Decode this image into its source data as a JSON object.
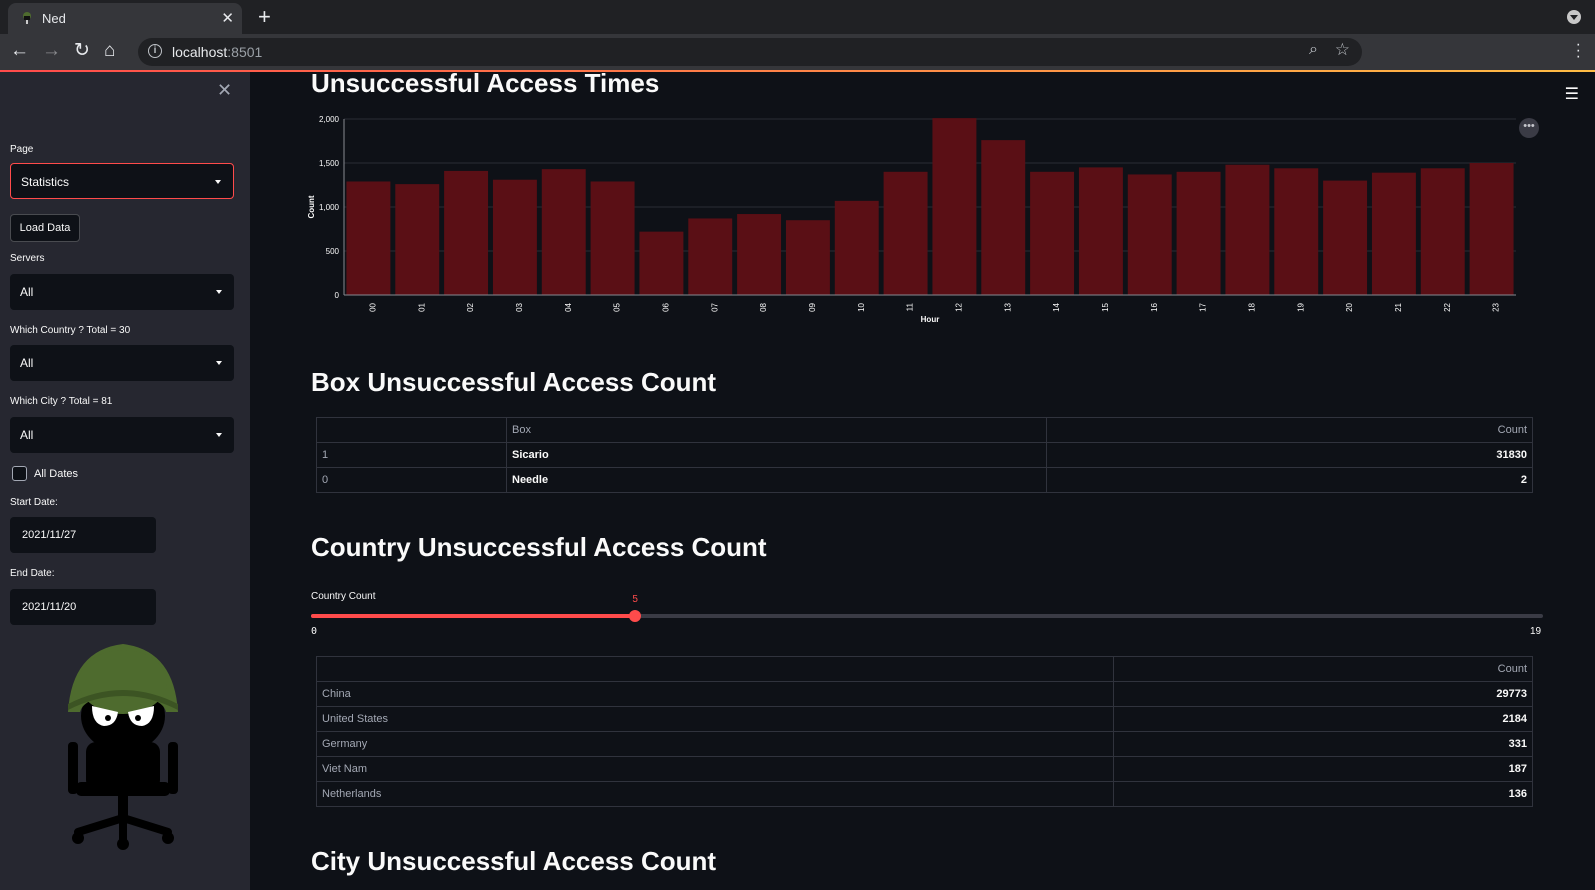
{
  "browser": {
    "tab_title": "Ned",
    "url_host": "localhost",
    "url_port": ":8501"
  },
  "sidebar": {
    "page_label": "Page",
    "page_value": "Statistics",
    "load_button": "Load Data",
    "servers_label": "Servers",
    "servers_value": "All",
    "country_label": "Which Country ? Total = 30",
    "country_value": "All",
    "city_label": "Which City ? Total = 81",
    "city_value": "All",
    "all_dates_label": "All Dates",
    "start_date_label": "Start Date:",
    "start_date_value": "2021/11/27",
    "end_date_label": "End Date:",
    "end_date_value": "2021/11/20"
  },
  "main": {
    "access_times_title": "Unsuccessful Access Times",
    "box_title": "Box Unsuccessful Access Count",
    "country_title": "Country Unsuccessful Access Count",
    "city_title": "City Unsuccessful Access Count",
    "slider": {
      "label": "Country Count",
      "value": 5,
      "min": 0,
      "max": 19,
      "value_text": "5",
      "min_text": "0",
      "max_text": "19"
    },
    "box_table": {
      "headers": [
        "",
        "Box",
        "Count"
      ],
      "rows": [
        {
          "idx": "1",
          "box": "Sicario",
          "count": "31830"
        },
        {
          "idx": "0",
          "box": "Needle",
          "count": "2"
        }
      ]
    },
    "country_table": {
      "headers": [
        "",
        "Count"
      ],
      "rows": [
        {
          "country": "China",
          "count": "29773"
        },
        {
          "country": "United States",
          "count": "2184"
        },
        {
          "country": "Germany",
          "count": "331"
        },
        {
          "country": "Viet Nam",
          "count": "187"
        },
        {
          "country": "Netherlands",
          "count": "136"
        }
      ]
    }
  },
  "colors": {
    "bar": "#5a0f15",
    "accent": "#ff4b4b",
    "helmet": "#4e6b2e"
  },
  "chart_data": {
    "type": "bar",
    "xlabel": "Hour",
    "ylabel": "Count",
    "ylim": [
      0,
      2000
    ],
    "yticks": [
      0,
      500,
      1000,
      1500,
      2000
    ],
    "ytick_labels": [
      "0",
      "500",
      "1,000",
      "1,500",
      "2,000"
    ],
    "categories": [
      "00",
      "01",
      "02",
      "03",
      "04",
      "05",
      "06",
      "07",
      "08",
      "09",
      "10",
      "11",
      "12",
      "13",
      "14",
      "15",
      "16",
      "17",
      "18",
      "19",
      "20",
      "21",
      "22",
      "23"
    ],
    "values": [
      1290,
      1260,
      1410,
      1310,
      1430,
      1290,
      720,
      870,
      920,
      850,
      1070,
      1400,
      2010,
      1760,
      1400,
      1450,
      1370,
      1400,
      1480,
      1440,
      1300,
      1390,
      1440,
      1500
    ]
  }
}
